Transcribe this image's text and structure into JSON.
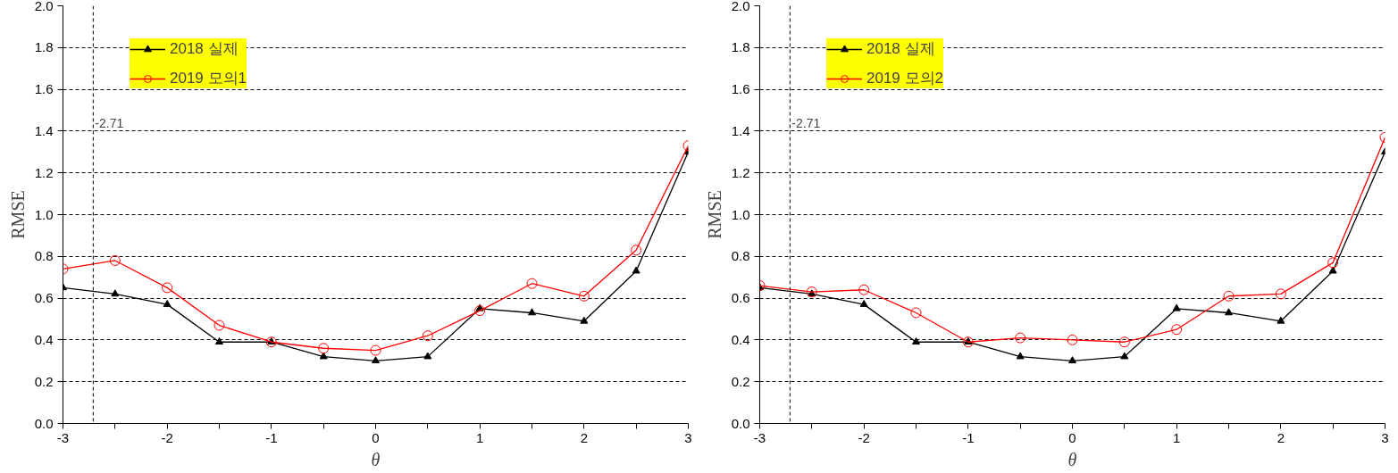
{
  "chart_data": [
    {
      "type": "line",
      "xlabel": "θ",
      "ylabel": "RMSE",
      "x": [
        -3,
        -2.5,
        -2,
        -1.5,
        -1,
        -0.5,
        0,
        0.5,
        1,
        1.5,
        2,
        2.5,
        3
      ],
      "xlim": [
        -3,
        3
      ],
      "ylim": [
        0,
        2
      ],
      "xticks": [
        -3,
        {
          "value": -2.5,
          "label": null
        },
        -2,
        {
          "value": -1.5,
          "label": null
        },
        -1,
        {
          "value": -0.5,
          "label": null
        },
        0,
        {
          "value": 0.5,
          "label": null
        },
        1,
        {
          "value": 1.5,
          "label": null
        },
        2,
        {
          "value": 2.5,
          "label": null
        },
        3
      ],
      "yticks": [
        {
          "value": 0,
          "label": "0.0"
        },
        0.2,
        0.4,
        0.6,
        0.8,
        {
          "value": 1,
          "label": "1.0"
        },
        1.2,
        1.4,
        1.6,
        1.8,
        {
          "value": 2,
          "label": "2.0"
        }
      ],
      "grid": "y",
      "legend": "top left",
      "ref_lines": [
        {
          "axis": "x",
          "value": -2.71,
          "label": "-2.71",
          "line_style": "dashed",
          "color": "#000000"
        }
      ],
      "series": [
        {
          "name": "2018 실제",
          "color": "#000000",
          "marker": "triangle",
          "values": [
            0.65,
            0.62,
            0.57,
            0.39,
            0.39,
            0.32,
            0.3,
            0.32,
            0.55,
            0.53,
            0.49,
            0.73,
            1.3
          ]
        },
        {
          "name": "2019 모의1",
          "color": "#ff0000",
          "marker": "circle",
          "values": [
            0.74,
            0.78,
            0.65,
            0.47,
            0.39,
            0.36,
            0.35,
            0.42,
            0.54,
            0.67,
            0.61,
            0.83,
            1.33
          ]
        }
      ]
    },
    {
      "type": "line",
      "xlabel": "θ",
      "ylabel": "RMSE",
      "x": [
        -3,
        -2.5,
        -2,
        -1.5,
        -1,
        -0.5,
        0,
        0.5,
        1,
        1.5,
        2,
        2.5,
        3
      ],
      "xlim": [
        -3,
        3
      ],
      "ylim": [
        0,
        2
      ],
      "xticks": [
        -3,
        {
          "value": -2.5,
          "label": null
        },
        -2,
        {
          "value": -1.5,
          "label": null
        },
        -1,
        {
          "value": -0.5,
          "label": null
        },
        0,
        {
          "value": 0.5,
          "label": null
        },
        1,
        {
          "value": 1.5,
          "label": null
        },
        2,
        {
          "value": 2.5,
          "label": null
        },
        3
      ],
      "yticks": [
        {
          "value": 0,
          "label": "0.0"
        },
        0.2,
        0.4,
        0.6,
        0.8,
        {
          "value": 1,
          "label": "1.0"
        },
        1.2,
        1.4,
        1.6,
        1.8,
        {
          "value": 2,
          "label": "2.0"
        }
      ],
      "grid": "y",
      "legend": "top left",
      "ref_lines": [
        {
          "axis": "x",
          "value": -2.71,
          "label": "-2.71",
          "line_style": "dashed",
          "color": "#000000"
        }
      ],
      "series": [
        {
          "name": "2018 실제",
          "color": "#000000",
          "marker": "triangle",
          "values": [
            0.65,
            0.62,
            0.57,
            0.39,
            0.39,
            0.32,
            0.3,
            0.32,
            0.55,
            0.53,
            0.49,
            0.73,
            1.3
          ]
        },
        {
          "name": "2019 모의2",
          "color": "#ff0000",
          "marker": "circle",
          "values": [
            0.66,
            0.63,
            0.64,
            0.53,
            0.39,
            0.41,
            0.4,
            0.39,
            0.45,
            0.61,
            0.62,
            0.77,
            1.37
          ]
        }
      ]
    }
  ]
}
